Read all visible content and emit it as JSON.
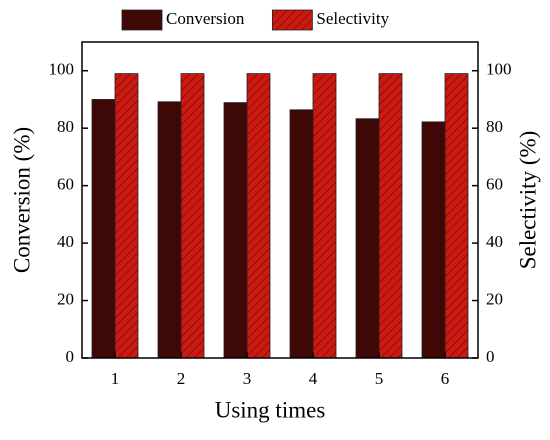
{
  "chart_data": {
    "type": "bar",
    "x_label": "Using times",
    "y_label": "Conversion (%)",
    "y2_label": "Selectivity (%)",
    "categories": [
      "1",
      "2",
      "3",
      "4",
      "5",
      "6"
    ],
    "series": [
      {
        "name": "Conversion",
        "color": "#3d0806",
        "values": [
          90,
          89.2,
          88.9,
          86.4,
          83.3,
          82.2
        ]
      },
      {
        "name": "Selectivity",
        "color": "#cc1a12",
        "hatch": true,
        "axis": "y2",
        "values": [
          99,
          99,
          99,
          99,
          99,
          99
        ]
      }
    ],
    "ylim": [
      0,
      110
    ],
    "yticks": [
      0,
      20,
      40,
      60,
      80,
      100
    ],
    "y2lim": [
      0,
      110
    ],
    "y2ticks": [
      0,
      20,
      40,
      60,
      80,
      100
    ],
    "legend": "top"
  }
}
